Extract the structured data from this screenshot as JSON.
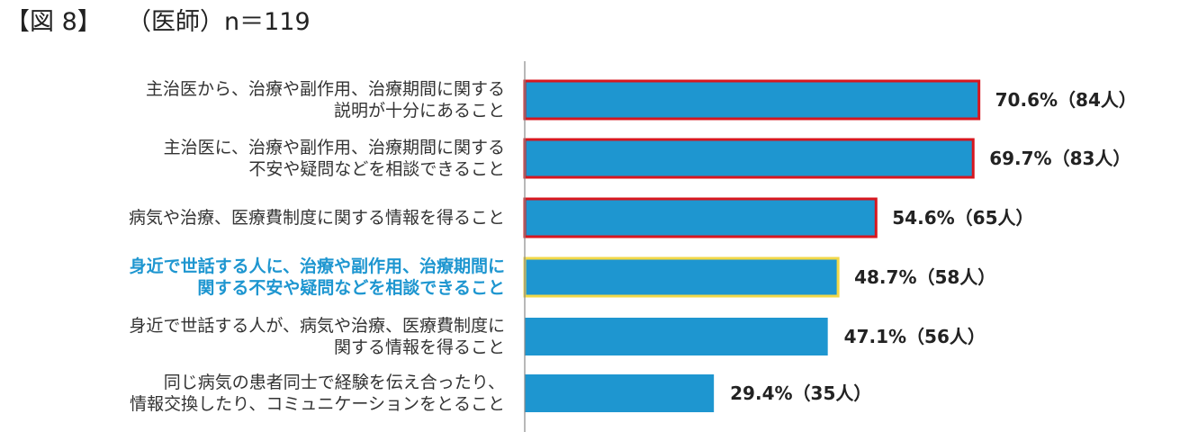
{
  "header": {
    "figure_number": "【図 8】",
    "title": "（医師）n＝119"
  },
  "chart_data": {
    "type": "bar",
    "orientation": "horizontal",
    "categories": [
      [
        "主治医から、治療や副作用、治療期間に関する",
        "説明が十分にあること"
      ],
      [
        "主治医に、治療や副作用、治療期間に関する",
        "不安や疑問などを相談できること"
      ],
      [
        "病気や治療、医療費制度に関する情報を得ること"
      ],
      [
        "身近で世話する人に、治療や副作用、治療期間に",
        "関する不安や疑問などを相談できること"
      ],
      [
        "身近で世話する人が、病気や治療、医療費制度に",
        "関する情報を得ること"
      ],
      [
        "同じ病気の患者同士で経験を伝え合ったり、",
        "情報交換したり、コミュニケーションをとること"
      ]
    ],
    "values": [
      70.6,
      69.7,
      54.6,
      48.7,
      47.1,
      29.4
    ],
    "counts": [
      84,
      83,
      65,
      58,
      56,
      35
    ],
    "value_labels": [
      "70.6%（84人）",
      "69.7%（83人）",
      "54.6%（65人）",
      "48.7%（58人）",
      "47.1%（56人）",
      "29.4%（35人）"
    ],
    "xlim": [
      0,
      100
    ],
    "bar_color": "#1e96d0",
    "outline_colors": [
      "#d7171f",
      "#d7171f",
      "#d7171f",
      "#f2d848",
      null,
      null
    ],
    "highlighted_label_index": 3,
    "highlight_label_color": "#1e96d0",
    "axis_color": "#888888",
    "grid": false,
    "legend": "none"
  }
}
